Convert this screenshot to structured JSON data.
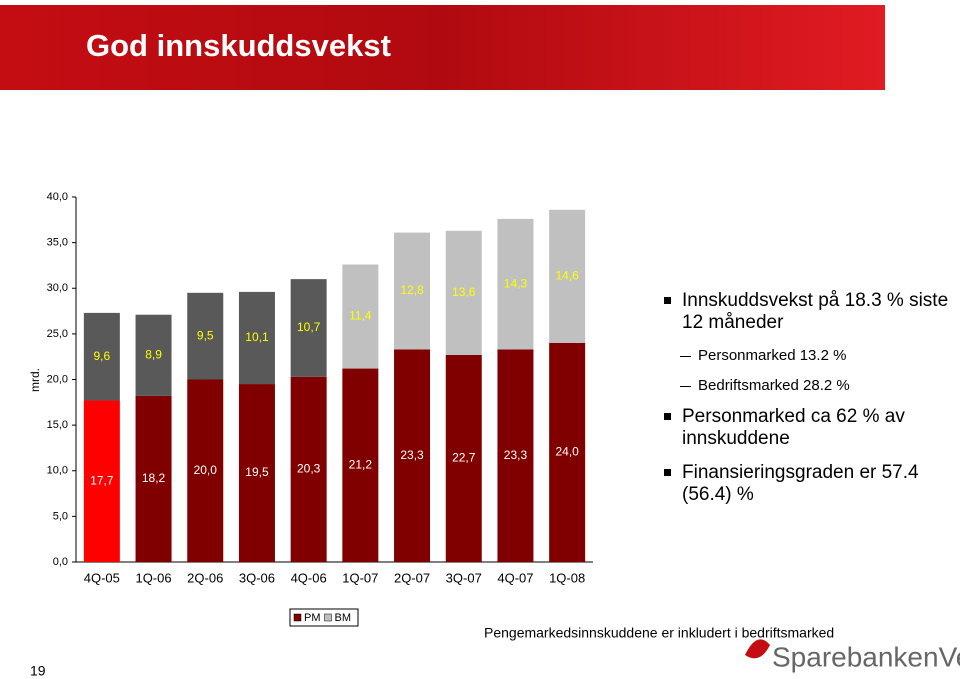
{
  "slide": {
    "title": "God innskuddsvekst",
    "bullets": [
      {
        "text": "Innskuddsvekst på 18.3 % siste 12 måneder",
        "sub": [
          "Personmarked 13.2 %",
          "Bedriftsmarked 28.2 %"
        ]
      },
      {
        "text": "Personmarked ca 62 % av innskuddene",
        "sub": []
      },
      {
        "text": "Finansieringsgraden er 57.4 (56.4) %",
        "sub": []
      }
    ],
    "footnote": "Pengemarkedsinnskuddene er inkludert i bedriftsmarked",
    "page": 19,
    "logo": "SparebankenVest"
  },
  "chart_data": {
    "type": "bar",
    "stacked": true,
    "y_label": "mrd.",
    "categories": [
      "4Q-05",
      "1Q-06",
      "2Q-06",
      "3Q-06",
      "4Q-06",
      "1Q-07",
      "2Q-07",
      "3Q-07",
      "4Q-07",
      "1Q-08"
    ],
    "series": [
      {
        "name": "PM",
        "color": "#800000",
        "colors": [
          "#ff0000",
          "#800000",
          "#800000",
          "#800000",
          "#800000",
          "#800000",
          "#800000",
          "#800000",
          "#800000",
          "#800000"
        ],
        "values": [
          17.7,
          18.2,
          20.0,
          19.5,
          20.3,
          21.2,
          23.3,
          22.7,
          23.3,
          24.0
        ],
        "value_labels": [
          "17,7",
          "18,2",
          "20,0",
          "19,5",
          "20,3",
          "21,2",
          "23,3",
          "22,7",
          "23,3",
          "24,0"
        ],
        "label_color": "#ffffff"
      },
      {
        "name": "BM",
        "color": "#c0c0c0",
        "colors": [
          "#595959",
          "#595959",
          "#595959",
          "#595959",
          "#595959",
          "#c0c0c0",
          "#c0c0c0",
          "#c0c0c0",
          "#c0c0c0",
          "#c0c0c0"
        ],
        "values": [
          9.6,
          8.9,
          9.5,
          10.1,
          10.7,
          11.4,
          12.8,
          13.6,
          14.3,
          14.6
        ],
        "value_labels": [
          "9,6",
          "8,9",
          "9,5",
          "10,1",
          "10,7",
          "11,4",
          "12,8",
          "13,6",
          "14,3",
          "14,6"
        ],
        "label_color": "#ffff00"
      }
    ],
    "ylim": [
      0,
      40
    ],
    "yticks": [
      {
        "value": 0,
        "label": "0,0"
      },
      {
        "value": 5,
        "label": "5,0"
      },
      {
        "value": 10,
        "label": "10,0"
      },
      {
        "value": 15,
        "label": "15,0"
      },
      {
        "value": 20,
        "label": "20,0"
      },
      {
        "value": 25,
        "label": "25,0"
      },
      {
        "value": 30,
        "label": "30,0"
      },
      {
        "value": 35,
        "label": "35,0"
      },
      {
        "value": 40,
        "label": "40,0"
      }
    ],
    "grid": false
  }
}
